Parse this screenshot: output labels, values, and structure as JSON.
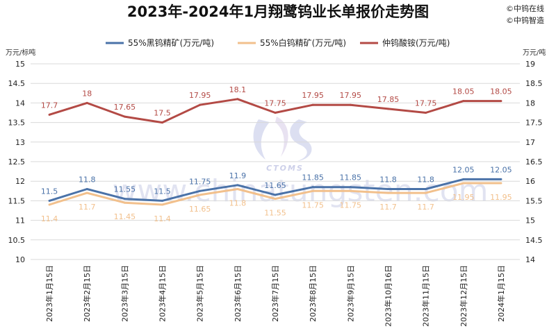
{
  "chart_data": {
    "type": "line",
    "title": "2023年-2024年1月翔鹭钨业长单报价走势图",
    "brand_lines": [
      "©中钨在线",
      "©中钨智造"
    ],
    "watermark": "www.chinatungsten.com",
    "watermark_logo": "CTOMS",
    "ylabel_left": "万元/标吨",
    "ylabel_right": "万元/吨",
    "categories": [
      "2023年1月15日",
      "2023年2月15日",
      "2023年3月15日",
      "2023年4月15日",
      "2023年5月15日",
      "2023年6月15日",
      "2023年7月15日",
      "2023年8月15日",
      "2023年9月15日",
      "2023年10月16日",
      "2023年11月15日",
      "2023年12月15日",
      "2024年1月15日"
    ],
    "ylim_left": [
      10,
      15
    ],
    "ylim_right": [
      14,
      19
    ],
    "yticks_left": [
      "10",
      "10.5",
      "11",
      "11.5",
      "12",
      "12.5",
      "13",
      "13.5",
      "14",
      "14.5",
      "15"
    ],
    "yticks_right": [
      "14",
      "14.5",
      "15",
      "15.5",
      "16",
      "16.5",
      "17",
      "17.5",
      "18",
      "18.5",
      "19"
    ],
    "legend_position": "top",
    "grid": true,
    "series": [
      {
        "name": "55%黑钨精矿(万元/吨)",
        "axis": "left",
        "color": "#4a72a8",
        "values": [
          11.5,
          11.8,
          11.55,
          11.5,
          11.75,
          11.9,
          11.65,
          11.85,
          11.85,
          11.8,
          11.8,
          12.05,
          12.05
        ],
        "labels": [
          "11.5",
          "11.8",
          "11.55",
          "11.5",
          "11.75",
          "11.9",
          "11.65",
          "11.85",
          "11.85",
          "11.8",
          "11.8",
          "12.05",
          "12.05"
        ]
      },
      {
        "name": "55%白钨精矿(万元/吨)",
        "axis": "left",
        "color": "#f2c08c",
        "values": [
          11.4,
          11.7,
          11.45,
          11.4,
          11.65,
          11.8,
          11.55,
          11.75,
          11.75,
          11.7,
          11.7,
          11.95,
          11.95
        ],
        "labels": [
          "11.4",
          "11.7",
          "11.45",
          "11.4",
          "11.65",
          "11.8",
          "11.55",
          "11.75",
          "11.75",
          "11.7",
          "11.7",
          "11.95",
          "11.95"
        ]
      },
      {
        "name": "仲钨酸铵(万元/吨)",
        "axis": "right",
        "color": "#b34a45",
        "values": [
          17.7,
          18,
          17.65,
          17.5,
          17.95,
          18.1,
          17.75,
          17.95,
          17.95,
          17.85,
          17.75,
          18.05,
          18.05
        ],
        "labels": [
          "17.7",
          "18",
          "17.65",
          "17.5",
          "17.95",
          "18.1",
          "17.75",
          "17.95",
          "17.95",
          "17.85",
          "17.75",
          "18.05",
          "18.05"
        ]
      }
    ]
  }
}
